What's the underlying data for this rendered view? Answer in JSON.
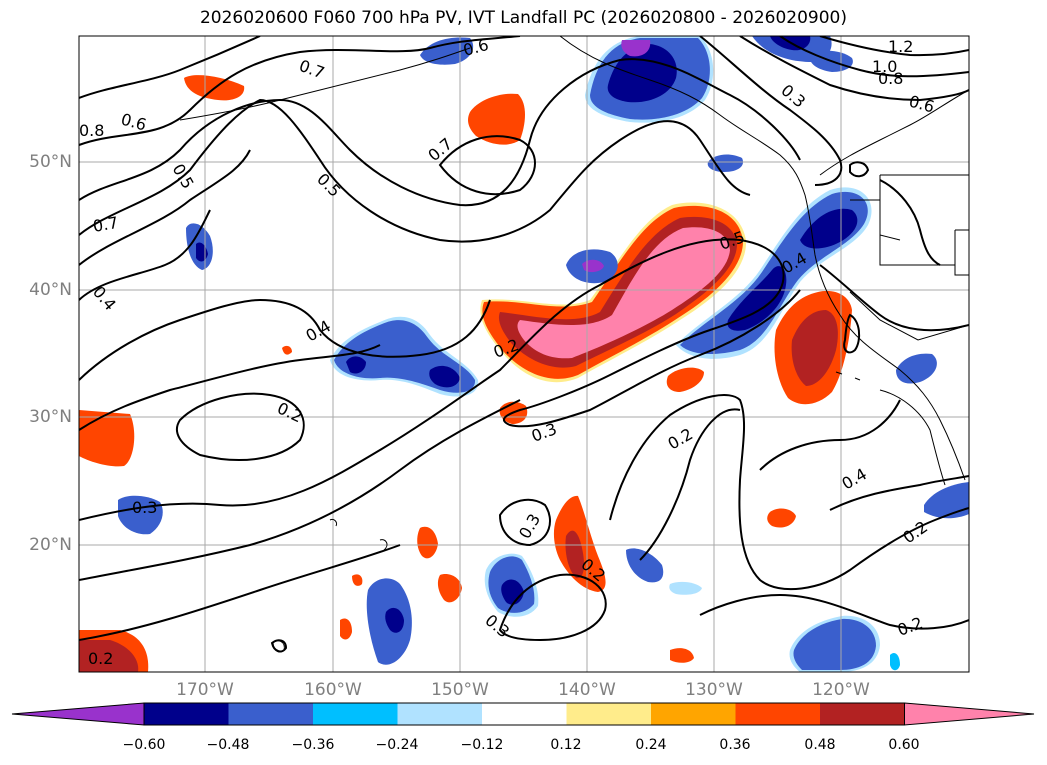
{
  "title": "2026020600 F060 700 hPa PV, IVT Landfall PC (2026020800 - 2026020900)",
  "lat_labels": [
    "50°N",
    "40°N",
    "30°N",
    "20°N"
  ],
  "lon_labels": [
    "170°W",
    "160°W",
    "150°W",
    "140°W",
    "130°W",
    "120°W"
  ],
  "colorbar": {
    "ticks": [
      "−0.60",
      "−0.48",
      "−0.36",
      "−0.24",
      "−0.12",
      "0.12",
      "0.24",
      "0.36",
      "0.48",
      "0.60"
    ],
    "colors": [
      "#9932cc",
      "#00008b",
      "#3a5fcd",
      "#00bfff",
      "#b0e2ff",
      "#ffffff",
      "#ffec8b",
      "#ffa500",
      "#ff4500",
      "#b22222",
      "#ff82ab"
    ]
  },
  "contour_labels": [
    "0.6",
    "0.7",
    "1.2",
    "1.0",
    "0.8",
    "0.6",
    "0.6",
    "0.7",
    "0.5",
    "0.5",
    "0.7",
    "0.4",
    "0.5",
    "0.4",
    "0.4",
    "0.2",
    "0.2",
    "0.3",
    "0.2",
    "0.4",
    "0.3",
    "0.3",
    "0.2",
    "0.3",
    "0.2",
    "0.2",
    "0.2",
    "0.8",
    "0.3"
  ],
  "chart_data": {
    "type": "map",
    "title": "2026020600 F060 700 hPa PV, IVT Landfall PC (2026020800 - 2026020900)",
    "lon_ticks": [
      "170°W",
      "160°W",
      "150°W",
      "140°W",
      "130°W",
      "120°W"
    ],
    "lat_ticks": [
      "50°N",
      "40°N",
      "30°N",
      "20°N"
    ],
    "fill_levels": [
      -0.6,
      -0.48,
      -0.36,
      -0.24,
      -0.12,
      0.12,
      0.24,
      0.36,
      0.48,
      0.6
    ],
    "contour_values": [
      0.2,
      0.3,
      0.4,
      0.5,
      0.6,
      0.7,
      0.8,
      1.0,
      1.2
    ]
  }
}
